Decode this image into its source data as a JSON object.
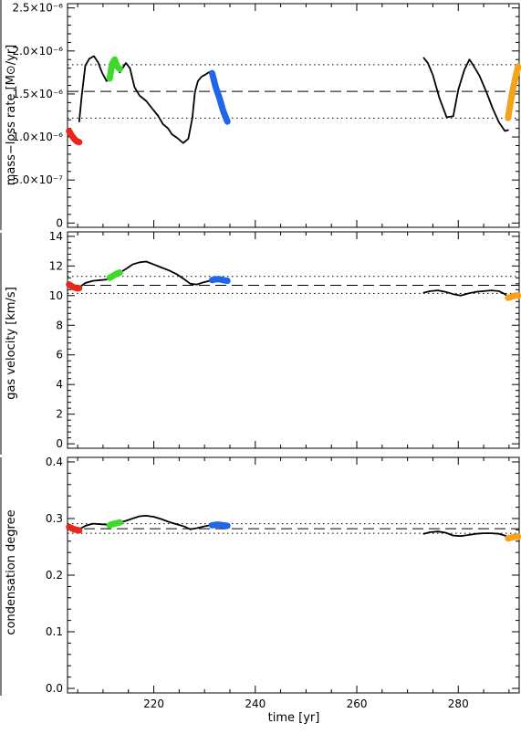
{
  "chart_data": [
    {
      "type": "line",
      "ylabel": "mass−loss rate  [M⊙/yr]",
      "ylim": [
        -0.05,
        2.55
      ],
      "xlim": [
        203,
        292
      ],
      "yticks": [
        {
          "v": 0,
          "label": "0"
        },
        {
          "v": 0.5,
          "label": "5.0×10⁻⁷"
        },
        {
          "v": 1.0,
          "label": "1.0×10⁻⁶"
        },
        {
          "v": 1.5,
          "label": "1.5×10⁻⁶"
        },
        {
          "v": 2.0,
          "label": "2.0×10⁻⁶"
        },
        {
          "v": 2.5,
          "label": "2.5×10⁻⁶"
        }
      ],
      "ref_lines": {
        "mean": 1.53,
        "upper": 1.84,
        "lower": 1.22
      },
      "series": [
        {
          "segment": "black",
          "x": [
            205.3,
            205.8,
            206.5,
            207.3,
            208.2,
            209.0,
            209.8,
            210.7,
            211.3
          ],
          "y": [
            1.18,
            1.48,
            1.83,
            1.91,
            1.94,
            1.87,
            1.75,
            1.65,
            1.68
          ]
        },
        {
          "segment": "black",
          "x": [
            213.3,
            214.5,
            215.3,
            216.2,
            217.2,
            218.5,
            219.7,
            220.8,
            221.8,
            222.8,
            223.6,
            224.6,
            225.8,
            226.8,
            227.6,
            228.1,
            228.7,
            229.4,
            230.0,
            230.8,
            231.5
          ],
          "y": [
            1.75,
            1.86,
            1.8,
            1.58,
            1.48,
            1.42,
            1.33,
            1.25,
            1.15,
            1.1,
            1.03,
            0.99,
            0.93,
            0.98,
            1.22,
            1.52,
            1.65,
            1.7,
            1.72,
            1.75,
            1.77
          ]
        },
        {
          "segment": "black",
          "x": [
            273.2,
            274.0,
            275.0,
            276.3,
            277.7,
            279.0,
            280.0,
            281.2,
            282.2,
            283.0,
            284.2,
            285.5,
            286.8,
            288.0,
            289.2,
            289.8
          ],
          "y": [
            1.92,
            1.86,
            1.72,
            1.45,
            1.23,
            1.24,
            1.55,
            1.78,
            1.9,
            1.83,
            1.71,
            1.53,
            1.33,
            1.17,
            1.07,
            1.08
          ]
        },
        {
          "segment": "red",
          "color": "#e8261c",
          "x": [
            203.3,
            203.8,
            204.3,
            204.8,
            205.3
          ],
          "y": [
            1.07,
            1.02,
            0.98,
            0.95,
            0.94
          ]
        },
        {
          "segment": "green",
          "color": "#3fd92a",
          "x": [
            211.3,
            211.8,
            212.3,
            212.8,
            213.3
          ],
          "y": [
            1.68,
            1.85,
            1.9,
            1.82,
            1.79
          ]
        },
        {
          "segment": "blue",
          "color": "#1f66e8",
          "x": [
            231.5,
            232.2,
            233.0,
            233.7,
            234.5
          ],
          "y": [
            1.74,
            1.58,
            1.44,
            1.3,
            1.18
          ]
        },
        {
          "segment": "orange",
          "color": "#f4a21c",
          "x": [
            289.8,
            290.3,
            290.8,
            291.3,
            291.8
          ],
          "y": [
            1.22,
            1.4,
            1.56,
            1.7,
            1.82
          ]
        }
      ]
    },
    {
      "type": "line",
      "ylabel": "gas velocity  [km/s]",
      "ylim": [
        -0.3,
        14.3
      ],
      "xlim": [
        203,
        292
      ],
      "yticks": [
        {
          "v": 0,
          "label": "0"
        },
        {
          "v": 2,
          "label": "2"
        },
        {
          "v": 4,
          "label": "4"
        },
        {
          "v": 6,
          "label": "6"
        },
        {
          "v": 8,
          "label": "8"
        },
        {
          "v": 10,
          "label": "10"
        },
        {
          "v": 12,
          "label": "12"
        },
        {
          "v": 14,
          "label": "14"
        }
      ],
      "ref_lines": {
        "mean": 10.7,
        "upper": 11.3,
        "lower": 10.15
      },
      "series": [
        {
          "segment": "black",
          "x": [
            205.3,
            206.5,
            208.0,
            209.5,
            211.3
          ],
          "y": [
            10.55,
            10.85,
            11.0,
            11.05,
            11.1
          ]
        },
        {
          "segment": "black",
          "x": [
            213.3,
            214.5,
            215.8,
            217.2,
            218.5,
            220.0,
            221.5,
            223.0,
            224.5,
            226.0,
            227.2,
            228.5,
            229.8,
            231.0,
            232.0
          ],
          "y": [
            11.55,
            11.8,
            12.1,
            12.25,
            12.3,
            12.1,
            11.9,
            11.7,
            11.45,
            11.1,
            10.8,
            10.75,
            10.9,
            11.0,
            11.05
          ]
        },
        {
          "segment": "black",
          "x": [
            273.2,
            274.5,
            276.0,
            277.5,
            279.0,
            280.5,
            282.0,
            283.5,
            285.0,
            286.5,
            288.0,
            289.2,
            289.8
          ],
          "y": [
            10.2,
            10.3,
            10.35,
            10.25,
            10.1,
            10.0,
            10.15,
            10.25,
            10.3,
            10.35,
            10.3,
            10.1,
            9.9
          ]
        },
        {
          "segment": "red",
          "color": "#e8261c",
          "x": [
            203.3,
            203.8,
            204.3,
            204.8,
            205.3
          ],
          "y": [
            10.75,
            10.65,
            10.55,
            10.5,
            10.5
          ]
        },
        {
          "segment": "green",
          "color": "#3fd92a",
          "x": [
            211.3,
            211.8,
            212.3,
            212.8,
            213.3
          ],
          "y": [
            11.2,
            11.3,
            11.4,
            11.5,
            11.55
          ]
        },
        {
          "segment": "blue",
          "color": "#1f66e8",
          "x": [
            231.5,
            232.2,
            233.0,
            233.7,
            234.5
          ],
          "y": [
            11.05,
            11.1,
            11.1,
            11.05,
            11.0
          ]
        },
        {
          "segment": "orange",
          "color": "#f4a21c",
          "x": [
            289.8,
            290.3,
            290.8,
            291.3,
            291.8
          ],
          "y": [
            9.85,
            9.9,
            9.95,
            10.0,
            10.0
          ]
        }
      ]
    },
    {
      "type": "line",
      "ylabel": "condensation degree",
      "xlabel": "time  [yr]",
      "ylim": [
        -0.008,
        0.408
      ],
      "xlim": [
        203,
        292
      ],
      "yticks": [
        {
          "v": 0.0,
          "label": "0.0"
        },
        {
          "v": 0.1,
          "label": "0.1"
        },
        {
          "v": 0.2,
          "label": "0.2"
        },
        {
          "v": 0.3,
          "label": "0.3"
        },
        {
          "v": 0.4,
          "label": "0.4"
        }
      ],
      "xticks": [
        {
          "v": 220,
          "label": "220"
        },
        {
          "v": 240,
          "label": "240"
        },
        {
          "v": 260,
          "label": "260"
        },
        {
          "v": 280,
          "label": "280"
        }
      ],
      "ref_lines": {
        "mean": 0.282,
        "upper": 0.291,
        "lower": 0.274
      },
      "series": [
        {
          "segment": "black",
          "x": [
            205.3,
            206.5,
            208.0,
            209.5,
            211.3
          ],
          "y": [
            0.281,
            0.287,
            0.291,
            0.29,
            0.289
          ]
        },
        {
          "segment": "black",
          "x": [
            213.3,
            214.5,
            215.8,
            217.2,
            218.5,
            220.0,
            221.5,
            223.0,
            224.5,
            226.0,
            227.2,
            228.5,
            229.8,
            231.0,
            232.0
          ],
          "y": [
            0.293,
            0.296,
            0.3,
            0.304,
            0.305,
            0.303,
            0.299,
            0.294,
            0.29,
            0.286,
            0.281,
            0.283,
            0.286,
            0.288,
            0.288
          ]
        },
        {
          "segment": "black",
          "x": [
            273.2,
            274.5,
            276.0,
            277.5,
            279.0,
            280.5,
            282.0,
            283.5,
            285.0,
            286.5,
            288.0,
            289.2,
            289.8
          ],
          "y": [
            0.273,
            0.276,
            0.277,
            0.275,
            0.27,
            0.269,
            0.271,
            0.273,
            0.274,
            0.274,
            0.273,
            0.27,
            0.267
          ]
        },
        {
          "segment": "red",
          "color": "#e8261c",
          "x": [
            203.3,
            203.8,
            204.3,
            204.8,
            205.3
          ],
          "y": [
            0.285,
            0.283,
            0.281,
            0.28,
            0.279
          ]
        },
        {
          "segment": "green",
          "color": "#3fd92a",
          "x": [
            211.3,
            211.8,
            212.3,
            212.8,
            213.3
          ],
          "y": [
            0.288,
            0.29,
            0.291,
            0.292,
            0.293
          ]
        },
        {
          "segment": "blue",
          "color": "#1f66e8",
          "x": [
            231.5,
            232.2,
            233.0,
            233.7,
            234.5
          ],
          "y": [
            0.288,
            0.289,
            0.289,
            0.288,
            0.287
          ]
        },
        {
          "segment": "orange",
          "color": "#f4a21c",
          "x": [
            289.8,
            290.3,
            290.8,
            291.3,
            291.8
          ],
          "y": [
            0.265,
            0.266,
            0.267,
            0.268,
            0.268
          ]
        }
      ]
    }
  ]
}
